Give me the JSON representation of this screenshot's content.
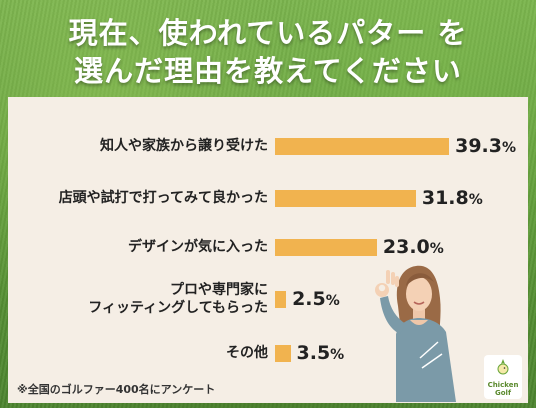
{
  "title_line1": "現在、使われているパター を",
  "title_line2": "選んだ理由を教えてください",
  "footnote": "※全国のゴルファー400名にアンケート",
  "logo": {
    "line1": "Chicken",
    "line2": "Golf"
  },
  "colors": {
    "bar": "#f1b34f",
    "panel": "#f5eee5",
    "title": "#ffffff"
  },
  "chart_data": {
    "type": "bar",
    "orientation": "horizontal",
    "categories": [
      [
        "知人や家族から譲り受けた"
      ],
      [
        "店頭や試打で打ってみて良かった"
      ],
      [
        "デザインが気に入った"
      ],
      [
        "プロや専門家に",
        "フィッティングしてもらった"
      ],
      [
        "その他"
      ]
    ],
    "values": [
      39.3,
      31.8,
      23.0,
      2.5,
      3.5
    ],
    "value_labels": [
      "39.3",
      "31.8",
      "23.0",
      "2.5",
      "3.5"
    ],
    "unit": "%"
  }
}
